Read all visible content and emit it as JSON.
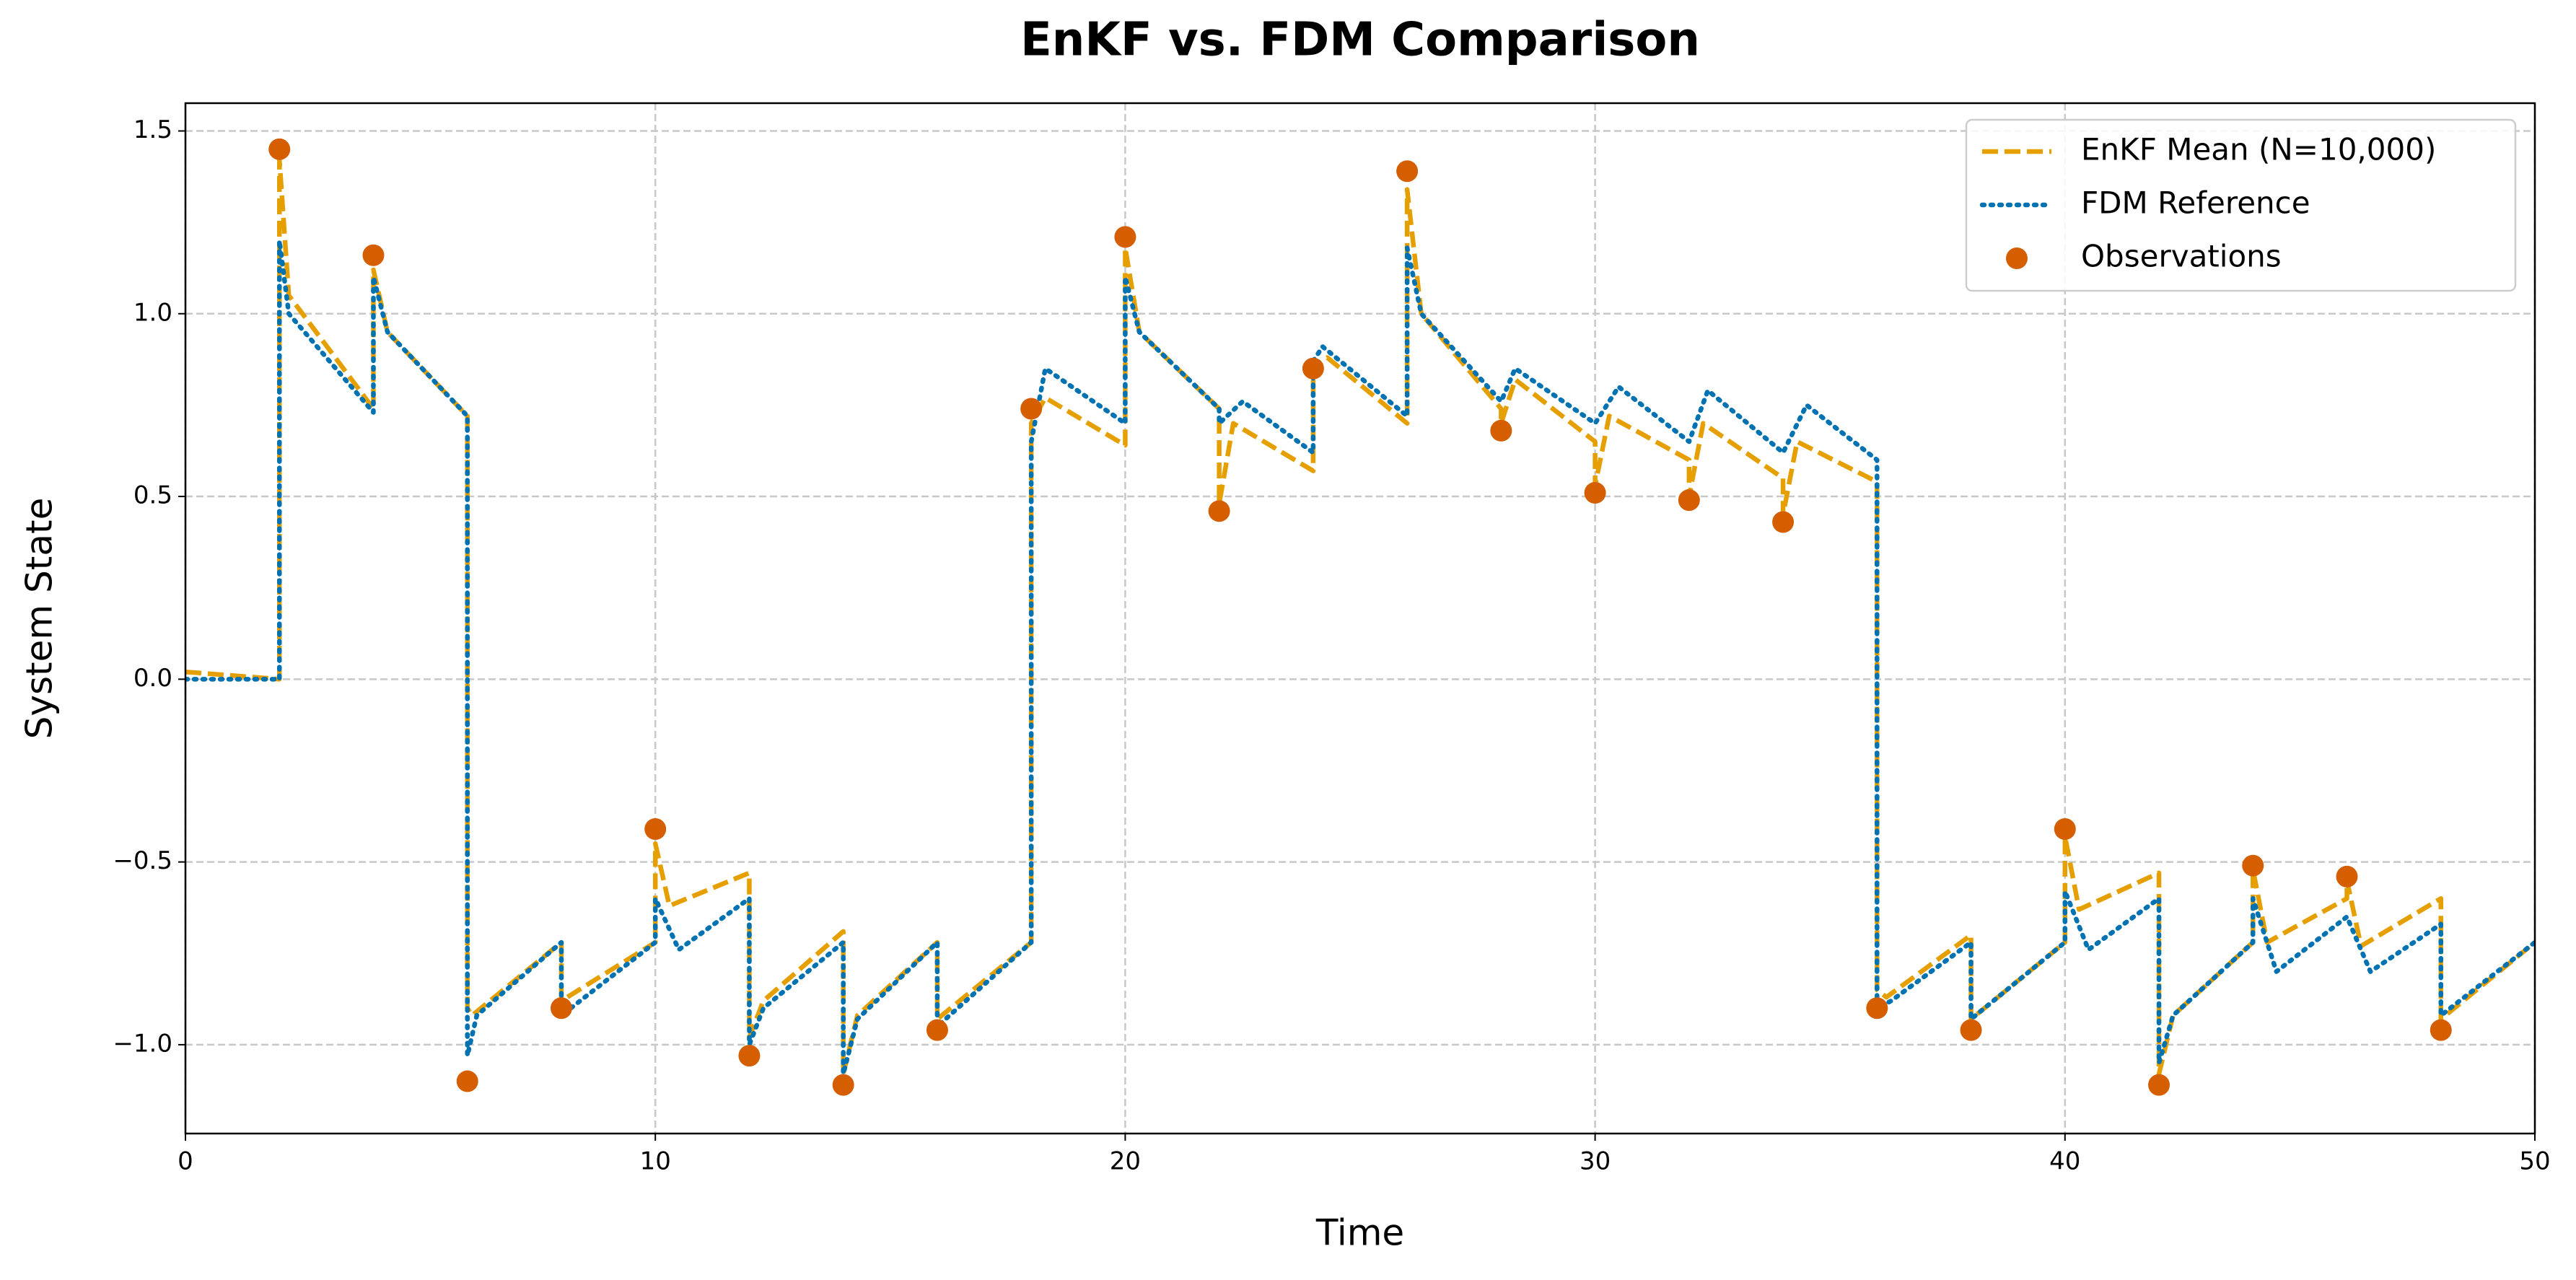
{
  "chart_data": {
    "type": "line",
    "title": "EnKF vs. FDM Comparison",
    "x_label": "Time",
    "y_label": "System State",
    "xlim": [
      0,
      50
    ],
    "xticks": [
      0,
      10,
      20,
      30,
      40,
      50
    ],
    "ylim": [
      -1.243,
      1.576
    ],
    "yticks": [
      {
        "value": -1.0,
        "label": "−1.0"
      },
      {
        "value": -0.5,
        "label": "−0.5"
      },
      {
        "value": 0.0,
        "label": "0.0"
      },
      {
        "value": 0.5,
        "label": "0.5"
      },
      {
        "value": 1.0,
        "label": "1.0"
      },
      {
        "value": 1.5,
        "label": "1.5"
      }
    ],
    "grid": true,
    "legend": "upper right",
    "series": [
      {
        "name": "EnKF Mean (N=10,000)",
        "color": "#E69F00",
        "dash": "dashed",
        "x": [
          0,
          2,
          2,
          2.2,
          4,
          4,
          4.3,
          6,
          6,
          6.1,
          8,
          8,
          10,
          10,
          10.3,
          12,
          12,
          12.3,
          14,
          14,
          14.3,
          16,
          16,
          18,
          18,
          18.3,
          20,
          20,
          20.3,
          22,
          22,
          22.3,
          24,
          24,
          24.3,
          26,
          26,
          26.3,
          28,
          28,
          28.3,
          30,
          30,
          30.3,
          32,
          32,
          32.3,
          34,
          34,
          34.3,
          36,
          36,
          36.2,
          38,
          38,
          40,
          40,
          40.3,
          42,
          42,
          42.3,
          44,
          44,
          44.3,
          46,
          46,
          46.3,
          48,
          48,
          50
        ],
        "values": [
          0.02,
          0.0,
          1.42,
          1.05,
          0.74,
          1.12,
          0.95,
          0.72,
          -0.9,
          -0.92,
          -0.72,
          -0.88,
          -0.72,
          -0.45,
          -0.62,
          -0.53,
          -0.98,
          -0.88,
          -0.69,
          -1.08,
          -0.92,
          -0.72,
          -0.93,
          -0.72,
          0.7,
          0.77,
          0.64,
          1.18,
          0.95,
          0.74,
          0.48,
          0.7,
          0.57,
          0.85,
          0.88,
          0.7,
          1.34,
          1.0,
          0.74,
          0.7,
          0.82,
          0.65,
          0.53,
          0.72,
          0.6,
          0.5,
          0.7,
          0.55,
          0.45,
          0.65,
          0.54,
          -0.85,
          -0.87,
          -0.7,
          -0.93,
          -0.72,
          -0.43,
          -0.63,
          -0.53,
          -1.08,
          -0.92,
          -0.72,
          -0.52,
          -0.72,
          -0.6,
          -0.55,
          -0.73,
          -0.6,
          -0.93,
          -0.72
        ]
      },
      {
        "name": "FDM Reference",
        "color": "#0072B2",
        "dash": "dotted",
        "x": [
          0,
          2,
          2,
          2.2,
          4,
          4,
          4.3,
          6,
          6,
          6.2,
          8,
          8,
          10,
          10,
          10.5,
          12,
          12,
          12.3,
          14,
          14,
          14.3,
          16,
          16,
          18,
          18,
          18.3,
          20,
          20,
          20.3,
          22,
          22,
          22.5,
          24,
          24,
          24.2,
          26,
          26,
          26.3,
          28,
          28.3,
          30,
          30.5,
          32,
          32.4,
          34,
          34.5,
          36,
          36,
          36.3,
          38,
          38,
          40,
          40,
          40.5,
          42,
          42,
          42.3,
          44,
          44,
          44.5,
          46,
          46.5,
          48,
          48,
          50
        ],
        "values": [
          0.0,
          0.0,
          1.2,
          1.0,
          0.73,
          1.1,
          0.95,
          0.72,
          -1.03,
          -0.92,
          -0.72,
          -0.92,
          -0.72,
          -0.6,
          -0.74,
          -0.6,
          -1.0,
          -0.9,
          -0.72,
          -1.08,
          -0.93,
          -0.72,
          -0.95,
          -0.72,
          0.65,
          0.85,
          0.7,
          1.1,
          0.95,
          0.74,
          0.7,
          0.76,
          0.62,
          0.87,
          0.91,
          0.72,
          1.18,
          1.0,
          0.76,
          0.85,
          0.7,
          0.8,
          0.65,
          0.79,
          0.62,
          0.75,
          0.6,
          -0.9,
          -0.88,
          -0.72,
          -0.93,
          -0.72,
          -0.58,
          -0.74,
          -0.6,
          -1.05,
          -0.92,
          -0.72,
          -0.6,
          -0.8,
          -0.65,
          -0.8,
          -0.67,
          -0.92,
          -0.72
        ]
      },
      {
        "name": "Observations",
        "color": "#D55E00",
        "type": "scatter",
        "x": [
          2,
          4,
          6,
          8,
          10,
          12,
          14,
          16,
          18,
          20,
          22,
          24,
          26,
          28,
          30,
          32,
          34,
          36,
          38,
          40,
          42,
          44,
          46,
          48
        ],
        "values": [
          1.45,
          1.16,
          -1.1,
          -0.9,
          -0.41,
          -1.03,
          -1.11,
          -0.96,
          0.74,
          1.21,
          0.46,
          0.85,
          1.39,
          0.68,
          0.51,
          0.49,
          0.43,
          -0.9,
          -0.96,
          -0.41,
          -1.11,
          -0.51,
          -0.54,
          -0.96
        ]
      }
    ]
  }
}
